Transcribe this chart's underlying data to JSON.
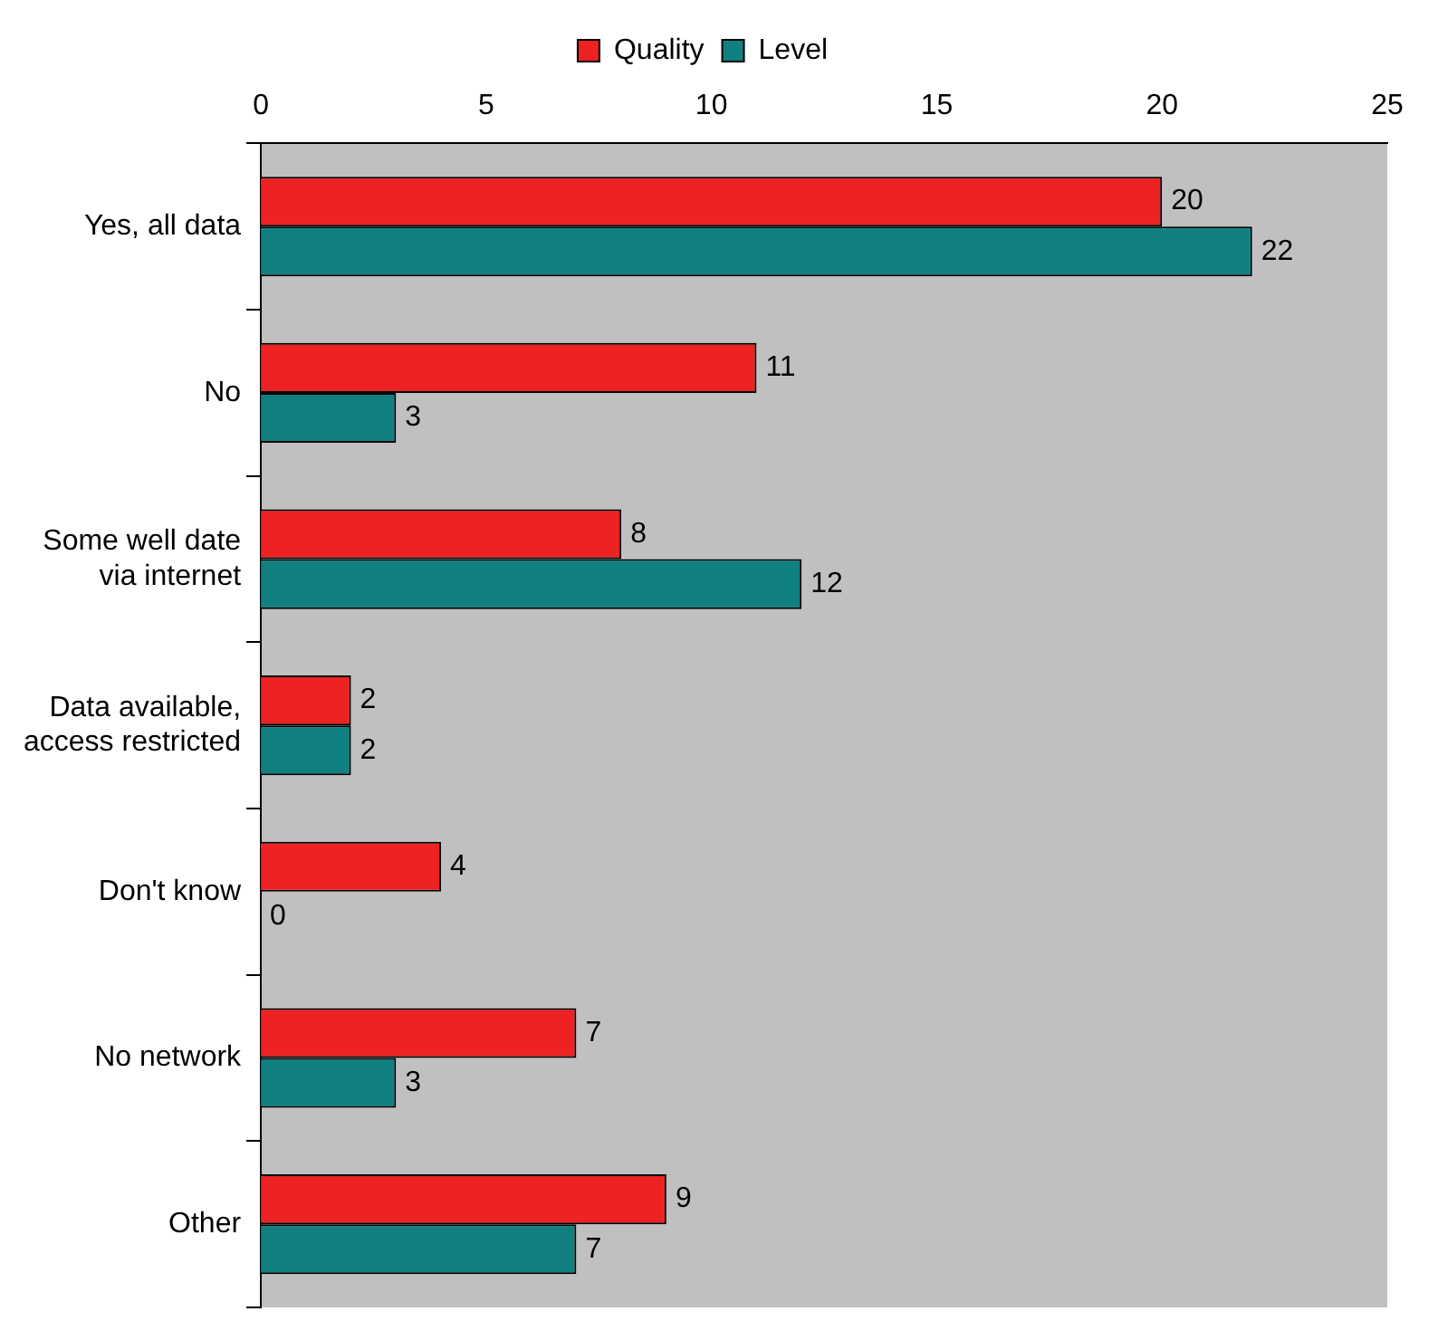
{
  "chart_data": {
    "type": "bar",
    "orientation": "horizontal",
    "categories": [
      "Yes, all data",
      "No",
      "Some well date via internet",
      "Data available, access restricted",
      "Don't know",
      "No network",
      "Other"
    ],
    "series": [
      {
        "name": "Quality",
        "color": "#ee2222",
        "values": [
          20,
          11,
          8,
          2,
          4,
          7,
          9
        ]
      },
      {
        "name": "Level",
        "color": "#108080",
        "values": [
          22,
          3,
          12,
          2,
          0,
          3,
          7
        ]
      }
    ],
    "xlim": [
      0,
      25
    ],
    "xticks": [
      0,
      5,
      10,
      15,
      20,
      25
    ],
    "grid": false,
    "legend": "top",
    "data_labels": true
  }
}
